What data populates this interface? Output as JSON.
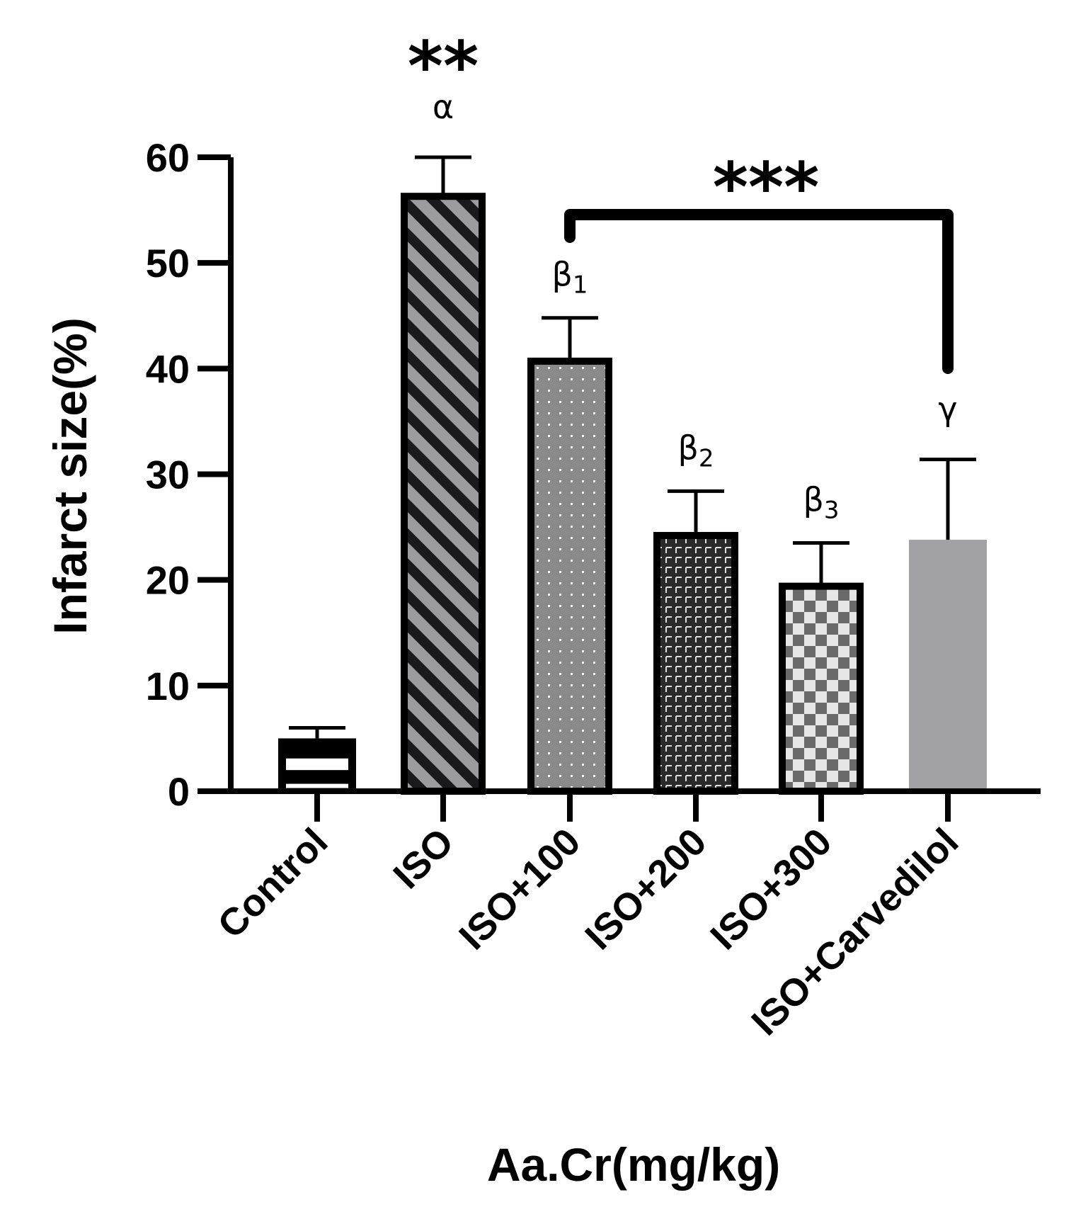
{
  "chart_data": {
    "type": "bar",
    "title": "",
    "xlabel": "Aa.Cr(mg/kg)",
    "ylabel": "Infarct size(%)",
    "ylim": [
      0,
      60
    ],
    "yticks": [
      0,
      10,
      20,
      30,
      40,
      50,
      60
    ],
    "ytick_labels": [
      "0",
      "10",
      "20",
      "30",
      "40",
      "50",
      "60"
    ],
    "categories": [
      "Control",
      "ISO",
      "ISO+100",
      "ISO+200",
      "ISO+300",
      "ISO+Carvedilol"
    ],
    "values": [
      5.0,
      56.3,
      40.7,
      24.2,
      19.4,
      23.8
    ],
    "error_upper": [
      6.0,
      60.0,
      44.8,
      28.4,
      23.5,
      31.4
    ],
    "annotations": [
      {
        "category": "ISO",
        "text": "α",
        "sub": "",
        "stars": "**"
      },
      {
        "category": "ISO+100",
        "text": "β",
        "sub": "1",
        "stars": ""
      },
      {
        "category": "ISO+200",
        "text": "β",
        "sub": "2",
        "stars": ""
      },
      {
        "category": "ISO+300",
        "text": "β",
        "sub": "3",
        "stars": ""
      },
      {
        "category": "ISO+Carvedilol",
        "text": "γ",
        "sub": "",
        "stars": ""
      }
    ],
    "bracket": {
      "from": "ISO+100",
      "to": "ISO+Carvedilol",
      "label": "***"
    },
    "colors": {
      "axis": "#000000",
      "hatch_light": "#9c9ca0",
      "hatch_dark": "#1a1a1c",
      "dots_bg": "#8a8a8a",
      "brick_bg": "#2a2a2a",
      "brick_line": "#e0e0e0",
      "check_dark": "#6a6a6a",
      "check_light": "#e6e6e6",
      "carvedilol": "#a2a2a6"
    }
  }
}
